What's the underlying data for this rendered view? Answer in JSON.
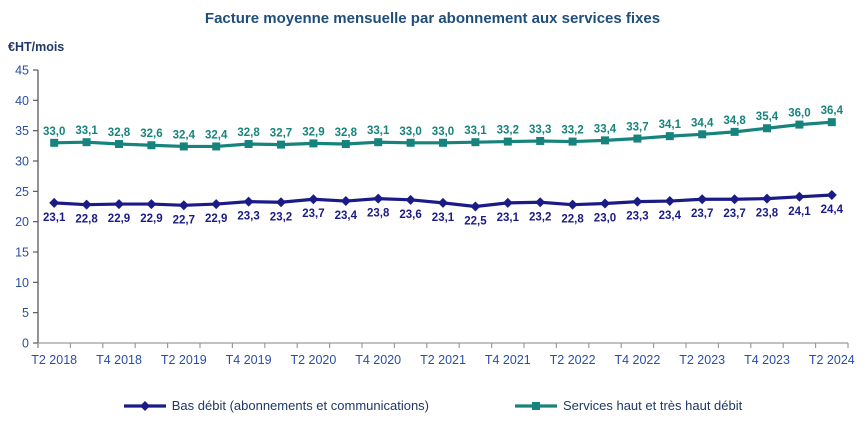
{
  "title": "Facture moyenne mensuelle par abonnement aux services fixes",
  "y_axis": {
    "unit": "€HT/mois",
    "min": 0,
    "max": 45,
    "step": 5
  },
  "x_axis": {
    "visible_labels": [
      "T2 2018",
      "T4 2018",
      "T2 2019",
      "T4 2019",
      "T2 2020",
      "T4 2020",
      "T2 2021",
      "T4 2021",
      "T2 2022",
      "T4 2022",
      "T2 2023",
      "T4 2023",
      "T2 2024"
    ],
    "label_every_n_points": 2
  },
  "chart_data": {
    "type": "line",
    "title": "Facture moyenne mensuelle par abonnement aux services fixes",
    "ylabel": "€HT/mois",
    "ylim": [
      0,
      45
    ],
    "y_tick_step": 5,
    "grid": false,
    "legend_position": "bottom",
    "x_tick_labels": [
      "T2 2018",
      "T4 2018",
      "T2 2019",
      "T4 2019",
      "T2 2020",
      "T4 2020",
      "T2 2021",
      "T4 2021",
      "T2 2022",
      "T4 2022",
      "T2 2023",
      "T4 2023",
      "T2 2024"
    ],
    "points_per_labeled_tick": 2,
    "decimal_separator": ",",
    "series": [
      {
        "name": "Bas débit (abonnements et communications)",
        "color": "#1B1B87",
        "marker": "diamond",
        "label_position": "below",
        "values": [
          23.1,
          22.8,
          22.9,
          22.9,
          22.7,
          22.9,
          23.3,
          23.2,
          23.7,
          23.4,
          23.8,
          23.6,
          23.1,
          22.5,
          23.1,
          23.2,
          22.8,
          23.0,
          23.3,
          23.4,
          23.7,
          23.7,
          23.8,
          24.1,
          24.4
        ]
      },
      {
        "name": "Services haut et très haut débit",
        "color": "#17837D",
        "marker": "square",
        "label_position": "above",
        "values": [
          33.0,
          33.1,
          32.8,
          32.6,
          32.4,
          32.4,
          32.8,
          32.7,
          32.9,
          32.8,
          33.1,
          33.0,
          33.0,
          33.1,
          33.2,
          33.3,
          33.2,
          33.4,
          33.7,
          34.1,
          34.4,
          34.8,
          35.4,
          36.0,
          36.4
        ]
      }
    ]
  },
  "colors": {
    "title_text": "#1F4E79",
    "axis_tick_text": "#2B4EA2",
    "unit_text": "#1F3864",
    "legend_text": "#1F3864",
    "y_axis_line": "#595959",
    "x_axis_line": "#9C9C9C"
  }
}
